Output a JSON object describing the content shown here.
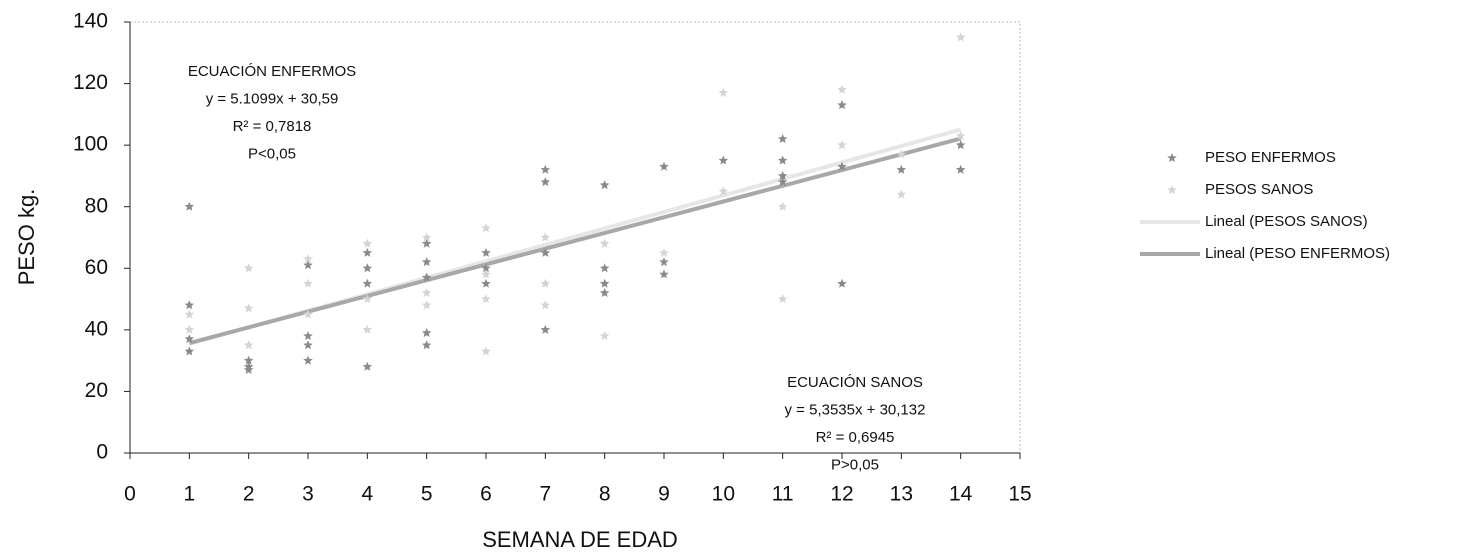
{
  "chart_data": {
    "type": "scatter",
    "xlabel": "SEMANA DE EDAD",
    "ylabel": "PESO kg.",
    "xlim": [
      0,
      15
    ],
    "ylim": [
      0,
      140
    ],
    "xticks": [
      0,
      1,
      2,
      3,
      4,
      5,
      6,
      7,
      8,
      9,
      10,
      11,
      12,
      13,
      14,
      15
    ],
    "yticks": [
      0,
      20,
      40,
      60,
      80,
      100,
      120,
      140
    ],
    "series": [
      {
        "name": "PESO ENFERMOS",
        "color": "#8a8a8a",
        "x": [
          1,
          1,
          1,
          1,
          2,
          2,
          2,
          3,
          3,
          3,
          3,
          4,
          4,
          4,
          4,
          5,
          5,
          5,
          5,
          5,
          6,
          6,
          6,
          7,
          7,
          7,
          7,
          8,
          8,
          8,
          8,
          9,
          9,
          9,
          10,
          11,
          11,
          11,
          11,
          12,
          12,
          12,
          13,
          14,
          14
        ],
        "values": [
          80,
          48,
          37,
          33,
          28,
          27,
          30,
          61,
          35,
          30,
          38,
          60,
          65,
          28,
          55,
          39,
          35,
          57,
          62,
          68,
          60,
          55,
          65,
          92,
          88,
          40,
          65,
          87,
          60,
          55,
          52,
          62,
          58,
          93,
          95,
          102,
          95,
          90,
          88,
          113,
          93,
          55,
          92,
          100,
          92
        ]
      },
      {
        "name": "PESOS SANOS",
        "color": "#d4d4d4",
        "x": [
          1,
          1,
          2,
          2,
          2,
          3,
          3,
          3,
          4,
          4,
          4,
          5,
          5,
          5,
          6,
          6,
          6,
          6,
          7,
          7,
          7,
          8,
          8,
          9,
          10,
          10,
          11,
          11,
          12,
          12,
          13,
          13,
          14,
          14
        ],
        "values": [
          45,
          40,
          60,
          47,
          35,
          63,
          45,
          55,
          68,
          40,
          50,
          70,
          48,
          52,
          73,
          50,
          33,
          58,
          70,
          55,
          48,
          68,
          38,
          65,
          117,
          85,
          50,
          80,
          118,
          100,
          84,
          97,
          135,
          103
        ]
      }
    ],
    "trendlines": [
      {
        "name": "Lineal (PESOS SANOS)",
        "color": "#e6e6e6",
        "x": [
          1,
          14
        ],
        "values": [
          35.49,
          105.08
        ]
      },
      {
        "name": "Lineal (PESO ENFERMOS)",
        "color": "#a8a8a8",
        "x": [
          1,
          14
        ],
        "values": [
          35.7,
          102.13
        ]
      }
    ],
    "annotations": [
      {
        "lines": [
          "ECUACIÓN ENFERMOS",
          "y = 5.1099x + 30,59",
          "R² = 0,7818",
          "P<0,05"
        ]
      },
      {
        "lines": [
          "ECUACIÓN SANOS",
          "y = 5,3535x + 30,132",
          "R² = 0,6945",
          "P>0,05"
        ]
      }
    ]
  }
}
